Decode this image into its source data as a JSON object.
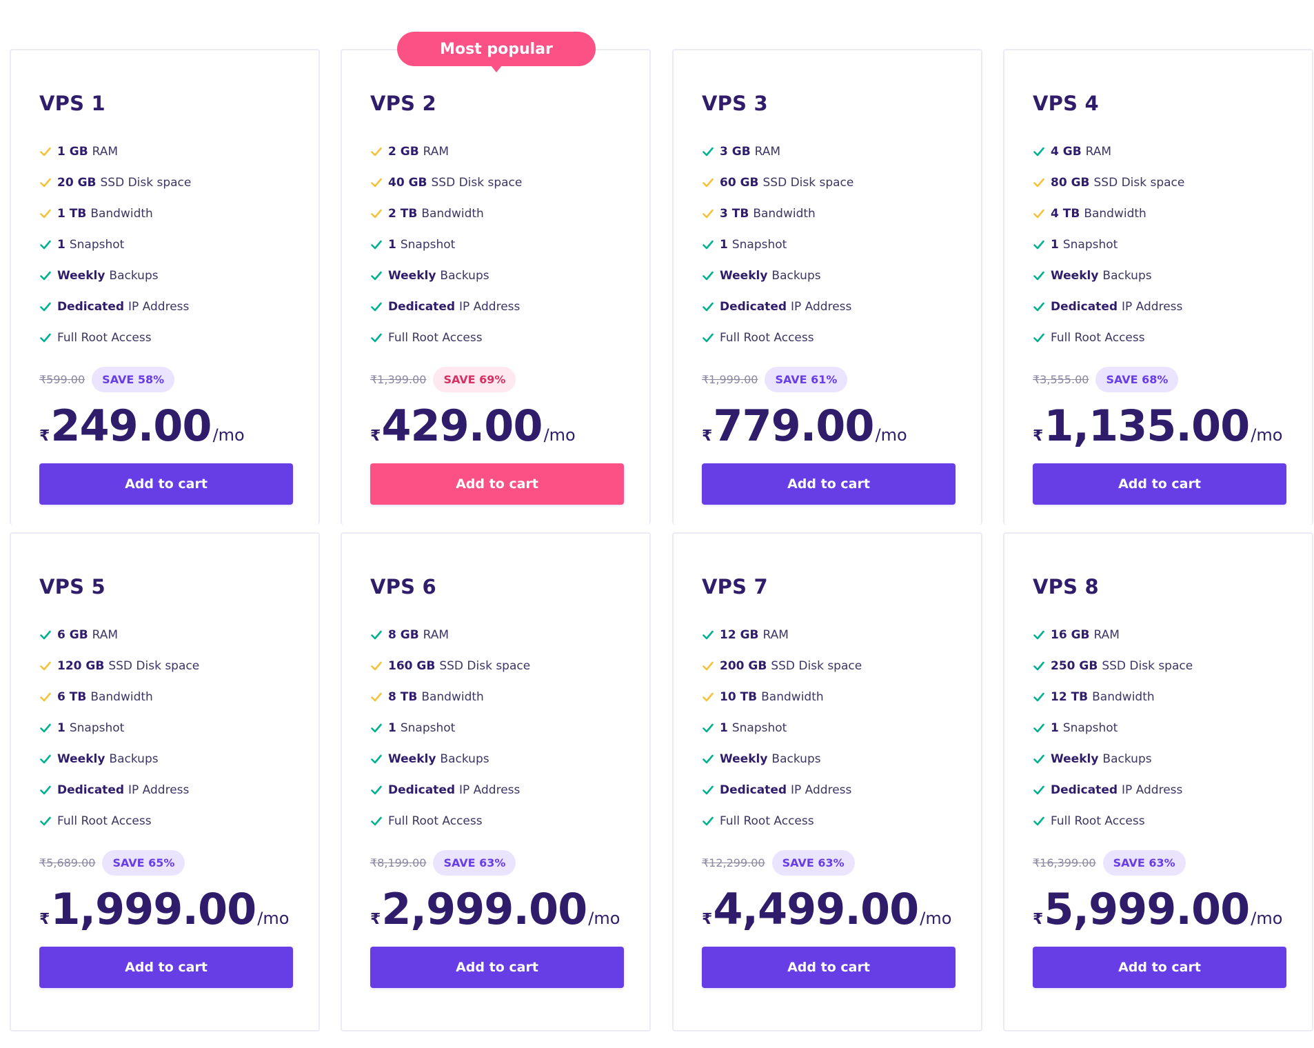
{
  "popular_label": "Most popular",
  "colors": {
    "primary": "#673de6",
    "highlight": "#fc5185",
    "check_green": "#00b090",
    "check_yellow": "#f5c33b",
    "text_dark": "#2f1c6a"
  },
  "button_label": "Add to cart",
  "per_label": "/mo",
  "currency": "₹",
  "plans": [
    {
      "name": "VPS 1",
      "features": [
        {
          "bold": "1 GB",
          "text": "RAM",
          "check": "yellow"
        },
        {
          "bold": "20 GB",
          "text": "SSD Disk space",
          "check": "yellow"
        },
        {
          "bold": "1 TB",
          "text": "Bandwidth",
          "check": "yellow"
        },
        {
          "bold": "1",
          "text": "Snapshot",
          "check": "green"
        },
        {
          "bold": "Weekly",
          "text": "Backups",
          "check": "green"
        },
        {
          "bold": "Dedicated",
          "text": "IP Address",
          "check": "green"
        },
        {
          "bold": "",
          "text": "Full Root Access",
          "check": "green"
        }
      ],
      "old_price": "₹599.00",
      "save": "SAVE 58%",
      "price": "249.00",
      "highlight": false
    },
    {
      "name": "VPS 2",
      "features": [
        {
          "bold": "2 GB",
          "text": "RAM",
          "check": "yellow"
        },
        {
          "bold": "40 GB",
          "text": "SSD Disk space",
          "check": "yellow"
        },
        {
          "bold": "2 TB",
          "text": "Bandwidth",
          "check": "yellow"
        },
        {
          "bold": "1",
          "text": "Snapshot",
          "check": "green"
        },
        {
          "bold": "Weekly",
          "text": "Backups",
          "check": "green"
        },
        {
          "bold": "Dedicated",
          "text": "IP Address",
          "check": "green"
        },
        {
          "bold": "",
          "text": "Full Root Access",
          "check": "green"
        }
      ],
      "old_price": "₹1,399.00",
      "save": "SAVE 69%",
      "price": "429.00",
      "highlight": true
    },
    {
      "name": "VPS 3",
      "features": [
        {
          "bold": "3 GB",
          "text": "RAM",
          "check": "green"
        },
        {
          "bold": "60 GB",
          "text": "SSD Disk space",
          "check": "yellow"
        },
        {
          "bold": "3 TB",
          "text": "Bandwidth",
          "check": "yellow"
        },
        {
          "bold": "1",
          "text": "Snapshot",
          "check": "green"
        },
        {
          "bold": "Weekly",
          "text": "Backups",
          "check": "green"
        },
        {
          "bold": "Dedicated",
          "text": "IP Address",
          "check": "green"
        },
        {
          "bold": "",
          "text": "Full Root Access",
          "check": "green"
        }
      ],
      "old_price": "₹1,999.00",
      "save": "SAVE 61%",
      "price": "779.00",
      "highlight": false
    },
    {
      "name": "VPS 4",
      "features": [
        {
          "bold": "4 GB",
          "text": "RAM",
          "check": "green"
        },
        {
          "bold": "80 GB",
          "text": "SSD Disk space",
          "check": "yellow"
        },
        {
          "bold": "4 TB",
          "text": "Bandwidth",
          "check": "yellow"
        },
        {
          "bold": "1",
          "text": "Snapshot",
          "check": "green"
        },
        {
          "bold": "Weekly",
          "text": "Backups",
          "check": "green"
        },
        {
          "bold": "Dedicated",
          "text": "IP Address",
          "check": "green"
        },
        {
          "bold": "",
          "text": "Full Root Access",
          "check": "green"
        }
      ],
      "old_price": "₹3,555.00",
      "save": "SAVE 68%",
      "price": "1,135.00",
      "highlight": false
    },
    {
      "name": "VPS 5",
      "features": [
        {
          "bold": "6 GB",
          "text": "RAM",
          "check": "green"
        },
        {
          "bold": "120 GB",
          "text": "SSD Disk space",
          "check": "yellow"
        },
        {
          "bold": "6 TB",
          "text": "Bandwidth",
          "check": "yellow"
        },
        {
          "bold": "1",
          "text": "Snapshot",
          "check": "green"
        },
        {
          "bold": "Weekly",
          "text": "Backups",
          "check": "green"
        },
        {
          "bold": "Dedicated",
          "text": "IP Address",
          "check": "green"
        },
        {
          "bold": "",
          "text": "Full Root Access",
          "check": "green"
        }
      ],
      "old_price": "₹5,689.00",
      "save": "SAVE 65%",
      "price": "1,999.00",
      "highlight": false
    },
    {
      "name": "VPS 6",
      "features": [
        {
          "bold": "8 GB",
          "text": "RAM",
          "check": "green"
        },
        {
          "bold": "160 GB",
          "text": "SSD Disk space",
          "check": "yellow"
        },
        {
          "bold": "8 TB",
          "text": "Bandwidth",
          "check": "yellow"
        },
        {
          "bold": "1",
          "text": "Snapshot",
          "check": "green"
        },
        {
          "bold": "Weekly",
          "text": "Backups",
          "check": "green"
        },
        {
          "bold": "Dedicated",
          "text": "IP Address",
          "check": "green"
        },
        {
          "bold": "",
          "text": "Full Root Access",
          "check": "green"
        }
      ],
      "old_price": "₹8,199.00",
      "save": "SAVE 63%",
      "price": "2,999.00",
      "highlight": false
    },
    {
      "name": "VPS 7",
      "features": [
        {
          "bold": "12 GB",
          "text": "RAM",
          "check": "green"
        },
        {
          "bold": "200 GB",
          "text": "SSD Disk space",
          "check": "yellow"
        },
        {
          "bold": "10 TB",
          "text": "Bandwidth",
          "check": "yellow"
        },
        {
          "bold": "1",
          "text": "Snapshot",
          "check": "green"
        },
        {
          "bold": "Weekly",
          "text": "Backups",
          "check": "green"
        },
        {
          "bold": "Dedicated",
          "text": "IP Address",
          "check": "green"
        },
        {
          "bold": "",
          "text": "Full Root Access",
          "check": "green"
        }
      ],
      "old_price": "₹12,299.00",
      "save": "SAVE 63%",
      "price": "4,499.00",
      "highlight": false
    },
    {
      "name": "VPS 8",
      "features": [
        {
          "bold": "16 GB",
          "text": "RAM",
          "check": "green"
        },
        {
          "bold": "250 GB",
          "text": "SSD Disk space",
          "check": "green"
        },
        {
          "bold": "12 TB",
          "text": "Bandwidth",
          "check": "green"
        },
        {
          "bold": "1",
          "text": "Snapshot",
          "check": "green"
        },
        {
          "bold": "Weekly",
          "text": "Backups",
          "check": "green"
        },
        {
          "bold": "Dedicated",
          "text": "IP Address",
          "check": "green"
        },
        {
          "bold": "",
          "text": "Full Root Access",
          "check": "green"
        }
      ],
      "old_price": "₹16,399.00",
      "save": "SAVE 63%",
      "price": "5,999.00",
      "highlight": false
    }
  ]
}
